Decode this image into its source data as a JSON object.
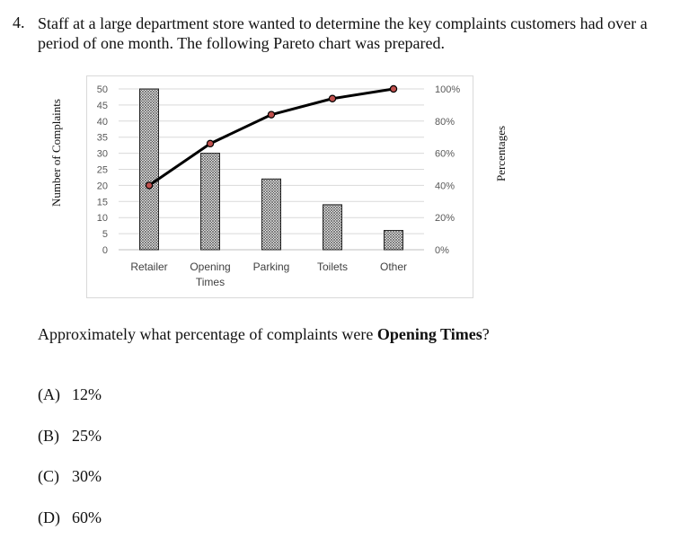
{
  "question": {
    "number": "4.",
    "stem": "Staff at a large department store wanted to determine the key complaints customers had over a period of one month. The following Pareto chart was prepared.",
    "prompt_before": "Approximately what percentage of complaints were ",
    "prompt_bold": "Opening Times",
    "prompt_after": "?"
  },
  "choices": [
    {
      "letter": "(A)",
      "text": "12%"
    },
    {
      "letter": "(B)",
      "text": "25%"
    },
    {
      "letter": "(C)",
      "text": "30%"
    },
    {
      "letter": "(D)",
      "text": "60%"
    }
  ],
  "chart_data": {
    "type": "bar",
    "categories": [
      "Retailer",
      "Opening Times",
      "Parking",
      "Toilets",
      "Other"
    ],
    "category_lines": [
      [
        "Retailer"
      ],
      [
        "Opening",
        "Times"
      ],
      [
        "Parking"
      ],
      [
        "Toilets"
      ],
      [
        "Other"
      ]
    ],
    "series": [
      {
        "values": [
          50,
          30,
          22,
          14,
          6
        ],
        "axis": "left",
        "kind": "bar",
        "pattern": "crosshatch"
      },
      {
        "values": [
          20,
          33,
          42,
          47,
          50
        ],
        "axis": "left",
        "kind": "line",
        "color": "#000000",
        "marker_color": "#c0504d"
      }
    ],
    "ylabel": "Number of Complaints",
    "y2label": "Percentages",
    "ylim": [
      0,
      50
    ],
    "yticks": [
      0,
      5,
      10,
      15,
      20,
      25,
      30,
      35,
      40,
      45,
      50
    ],
    "y2ticks": [
      "0%",
      "20%",
      "40%",
      "60%",
      "80%",
      "100%"
    ],
    "grid": true,
    "legend": "none"
  }
}
